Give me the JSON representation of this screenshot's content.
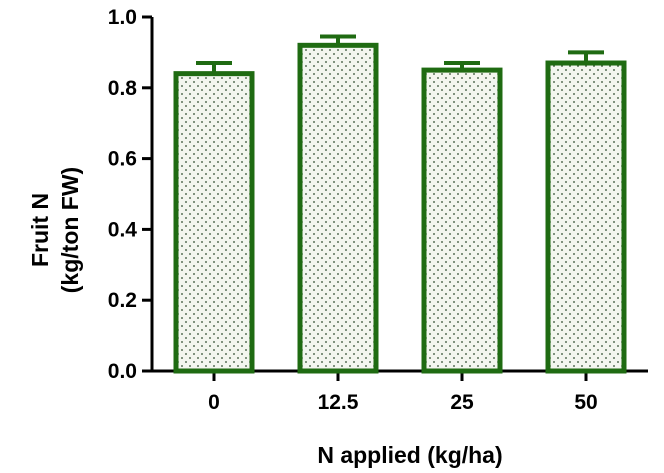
{
  "chart_data": {
    "type": "bar",
    "categories": [
      "0",
      "12.5",
      "25",
      "50"
    ],
    "values": [
      0.84,
      0.92,
      0.85,
      0.87
    ],
    "error": [
      0.03,
      0.025,
      0.02,
      0.03
    ],
    "ylim": [
      0,
      1.0
    ],
    "yticks": [
      "0.0",
      "0.2",
      "0.4",
      "0.6",
      "0.8",
      "1.0"
    ],
    "ylabel_line1": "Fruit N",
    "ylabel_line2": "(kg/ton FW)",
    "xlabel": "N applied (kg/ha)",
    "grid": false,
    "bar_color": "#1f6b12",
    "bar_fill_pattern": "dotted"
  }
}
